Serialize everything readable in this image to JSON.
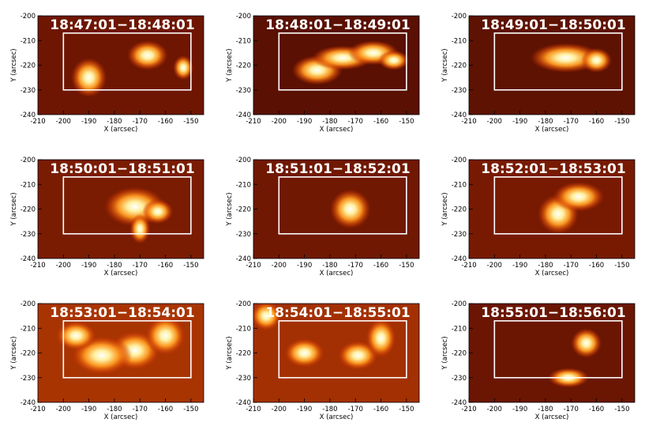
{
  "chart_data": [
    {
      "type": "image",
      "title": "18:47:01−18:48:01",
      "xlabel": "X (arcsec)",
      "ylabel": "Y (arcsec)",
      "xlim": [
        -210,
        -145
      ],
      "ylim": [
        -240,
        -200
      ],
      "xticks": [
        -210,
        -200,
        -190,
        -180,
        -170,
        -160,
        -150
      ],
      "yticks": [
        -240,
        -230,
        -220,
        -210,
        -200
      ],
      "background": "#6e1602",
      "box": {
        "x": [
          -200,
          -150
        ],
        "y": [
          -230,
          -207
        ]
      },
      "peaks": [
        {
          "x": -167,
          "y": -216,
          "rx": 4,
          "ry": 3
        },
        {
          "x": -190,
          "y": -225,
          "rx": 3.5,
          "ry": 4
        },
        {
          "x": -153,
          "y": -221,
          "rx": 2,
          "ry": 2.5
        }
      ]
    },
    {
      "type": "image",
      "title": "18:48:01−18:49:01",
      "xlabel": "X (arcsec)",
      "ylabel": "Y (arcsec)",
      "xlim": [
        -210,
        -145
      ],
      "ylim": [
        -240,
        -200
      ],
      "xticks": [
        -210,
        -200,
        -190,
        -180,
        -170,
        -160,
        -150
      ],
      "yticks": [
        -240,
        -230,
        -220,
        -210,
        -200
      ],
      "background": "#5a1002",
      "box": {
        "x": [
          -200,
          -150
        ],
        "y": [
          -230,
          -207
        ]
      },
      "peaks": [
        {
          "x": -185,
          "y": -222,
          "rx": 5,
          "ry": 3
        },
        {
          "x": -175,
          "y": -217,
          "rx": 6,
          "ry": 2.5
        },
        {
          "x": -163,
          "y": -215,
          "rx": 5,
          "ry": 2.5
        },
        {
          "x": -155,
          "y": -218,
          "rx": 3,
          "ry": 2
        }
      ]
    },
    {
      "type": "image",
      "title": "18:49:01−18:50:01",
      "xlabel": "X (arcsec)",
      "ylabel": "Y (arcsec)",
      "xlim": [
        -210,
        -145
      ],
      "ylim": [
        -240,
        -200
      ],
      "xticks": [
        -210,
        -200,
        -190,
        -180,
        -170,
        -160,
        -150
      ],
      "yticks": [
        -240,
        -230,
        -220,
        -210,
        -200
      ],
      "background": "#5e1202",
      "box": {
        "x": [
          -200,
          -150
        ],
        "y": [
          -230,
          -207
        ]
      },
      "peaks": [
        {
          "x": -172,
          "y": -217,
          "rx": 7,
          "ry": 3
        },
        {
          "x": -160,
          "y": -218,
          "rx": 3,
          "ry": 2.5
        }
      ]
    },
    {
      "type": "image",
      "title": "18:50:01−18:51:01",
      "xlabel": "X (arcsec)",
      "ylabel": "Y (arcsec)",
      "xlim": [
        -210,
        -145
      ],
      "ylim": [
        -240,
        -200
      ],
      "xticks": [
        -210,
        -200,
        -190,
        -180,
        -170,
        -160,
        -150
      ],
      "yticks": [
        -240,
        -230,
        -220,
        -210,
        -200
      ],
      "background": "#7a1c02",
      "box": {
        "x": [
          -200,
          -150
        ],
        "y": [
          -230,
          -207
        ]
      },
      "peaks": [
        {
          "x": -172,
          "y": -219,
          "rx": 6,
          "ry": 4
        },
        {
          "x": -163,
          "y": -221,
          "rx": 3,
          "ry": 2.5
        },
        {
          "x": -170,
          "y": -228,
          "rx": 2,
          "ry": 3
        }
      ]
    },
    {
      "type": "image",
      "title": "18:51:01−18:52:01",
      "xlabel": "X (arcsec)",
      "ylabel": "Y (arcsec)",
      "xlim": [
        -210,
        -145
      ],
      "ylim": [
        -240,
        -200
      ],
      "xticks": [
        -210,
        -200,
        -190,
        -180,
        -170,
        -160,
        -150
      ],
      "yticks": [
        -240,
        -230,
        -220,
        -210,
        -200
      ],
      "background": "#701802",
      "box": {
        "x": [
          -200,
          -150
        ],
        "y": [
          -230,
          -207
        ]
      },
      "peaks": [
        {
          "x": -172,
          "y": -220,
          "rx": 4,
          "ry": 4
        }
      ]
    },
    {
      "type": "image",
      "title": "18:52:01−18:53:01",
      "xlabel": "X (arcsec)",
      "ylabel": "Y (arcsec)",
      "xlim": [
        -210,
        -145
      ],
      "ylim": [
        -240,
        -200
      ],
      "xticks": [
        -210,
        -200,
        -190,
        -180,
        -170,
        -160,
        -150
      ],
      "yticks": [
        -240,
        -230,
        -220,
        -210,
        -200
      ],
      "background": "#781a02",
      "box": {
        "x": [
          -200,
          -150
        ],
        "y": [
          -230,
          -207
        ]
      },
      "peaks": [
        {
          "x": -175,
          "y": -222,
          "rx": 4,
          "ry": 4
        },
        {
          "x": -167,
          "y": -215,
          "rx": 5,
          "ry": 3
        }
      ]
    },
    {
      "type": "image",
      "title": "18:53:01−18:54:01",
      "xlabel": "X (arcsec)",
      "ylabel": "Y (arcsec)",
      "xlim": [
        -210,
        -145
      ],
      "ylim": [
        -240,
        -200
      ],
      "xticks": [
        -210,
        -200,
        -190,
        -180,
        -170,
        -160,
        -150
      ],
      "yticks": [
        -240,
        -230,
        -220,
        -210,
        -200
      ],
      "background": "#a83402",
      "box": {
        "x": [
          -200,
          -150
        ],
        "y": [
          -230,
          -207
        ]
      },
      "peaks": [
        {
          "x": -172,
          "y": -219,
          "rx": 5,
          "ry": 4
        },
        {
          "x": -185,
          "y": -221,
          "rx": 6,
          "ry": 4
        },
        {
          "x": -160,
          "y": -213,
          "rx": 4,
          "ry": 4
        },
        {
          "x": -195,
          "y": -213,
          "rx": 4,
          "ry": 3
        }
      ]
    },
    {
      "type": "image",
      "title": "18:54:01−18:55:01",
      "xlabel": "X (arcsec)",
      "ylabel": "Y (arcsec)",
      "xlim": [
        -210,
        -145
      ],
      "ylim": [
        -240,
        -200
      ],
      "xticks": [
        -210,
        -200,
        -190,
        -180,
        -170,
        -160,
        -150
      ],
      "yticks": [
        -240,
        -230,
        -220,
        -210,
        -200
      ],
      "background": "#a33002",
      "box": {
        "x": [
          -200,
          -150
        ],
        "y": [
          -230,
          -207
        ]
      },
      "peaks": [
        {
          "x": -169,
          "y": -221,
          "rx": 4,
          "ry": 3
        },
        {
          "x": -160,
          "y": -214,
          "rx": 3,
          "ry": 4
        },
        {
          "x": -190,
          "y": -220,
          "rx": 4,
          "ry": 3
        },
        {
          "x": -205,
          "y": -205,
          "rx": 3,
          "ry": 3
        }
      ]
    },
    {
      "type": "image",
      "title": "18:55:01−18:56:01",
      "xlabel": "X (arcsec)",
      "ylabel": "Y (arcsec)",
      "xlim": [
        -210,
        -145
      ],
      "ylim": [
        -240,
        -200
      ],
      "xticks": [
        -210,
        -200,
        -190,
        -180,
        -170,
        -160,
        -150
      ],
      "yticks": [
        -240,
        -230,
        -220,
        -210,
        -200
      ],
      "background": "#6a1602",
      "box": {
        "x": [
          -200,
          -150
        ],
        "y": [
          -230,
          -207
        ]
      },
      "peaks": [
        {
          "x": -164,
          "y": -216,
          "rx": 3,
          "ry": 3
        },
        {
          "x": -171,
          "y": -230,
          "rx": 4,
          "ry": 2
        }
      ]
    }
  ]
}
